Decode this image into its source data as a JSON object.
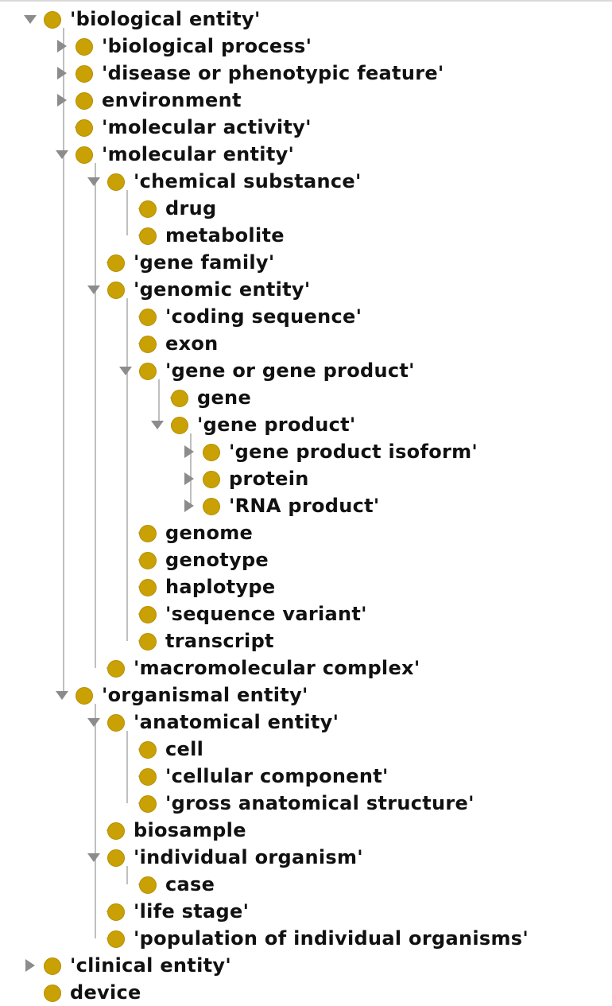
{
  "colors": {
    "class_icon": "#c9a104",
    "tree_line": "#bfbfbf",
    "toggle_arrow": "#8c8c8c",
    "text": "#111111"
  },
  "icons": {
    "class": "class-circle-icon",
    "expanded": "triangle-down-icon",
    "collapsed": "triangle-right-icon"
  },
  "tree": {
    "rows": [
      {
        "label": "'biological entity'",
        "depth": 0,
        "toggle": "expanded"
      },
      {
        "label": "'biological process'",
        "depth": 1,
        "toggle": "collapsed"
      },
      {
        "label": "'disease or phenotypic feature'",
        "depth": 1,
        "toggle": "collapsed"
      },
      {
        "label": "environment",
        "depth": 1,
        "toggle": "collapsed"
      },
      {
        "label": "'molecular activity'",
        "depth": 1,
        "toggle": "none"
      },
      {
        "label": "'molecular entity'",
        "depth": 1,
        "toggle": "expanded"
      },
      {
        "label": "'chemical substance'",
        "depth": 2,
        "toggle": "expanded"
      },
      {
        "label": "drug",
        "depth": 3,
        "toggle": "none"
      },
      {
        "label": "metabolite",
        "depth": 3,
        "toggle": "none"
      },
      {
        "label": "'gene family'",
        "depth": 2,
        "toggle": "none"
      },
      {
        "label": "'genomic entity'",
        "depth": 2,
        "toggle": "expanded"
      },
      {
        "label": "'coding sequence'",
        "depth": 3,
        "toggle": "none"
      },
      {
        "label": "exon",
        "depth": 3,
        "toggle": "none"
      },
      {
        "label": "'gene or gene product'",
        "depth": 3,
        "toggle": "expanded"
      },
      {
        "label": "gene",
        "depth": 4,
        "toggle": "none"
      },
      {
        "label": "'gene product'",
        "depth": 4,
        "toggle": "expanded"
      },
      {
        "label": "'gene product isoform'",
        "depth": 5,
        "toggle": "collapsed"
      },
      {
        "label": "protein",
        "depth": 5,
        "toggle": "collapsed"
      },
      {
        "label": "'RNA product'",
        "depth": 5,
        "toggle": "collapsed"
      },
      {
        "label": "genome",
        "depth": 3,
        "toggle": "none"
      },
      {
        "label": "genotype",
        "depth": 3,
        "toggle": "none"
      },
      {
        "label": "haplotype",
        "depth": 3,
        "toggle": "none"
      },
      {
        "label": "'sequence variant'",
        "depth": 3,
        "toggle": "none"
      },
      {
        "label": "transcript",
        "depth": 3,
        "toggle": "none"
      },
      {
        "label": "'macromolecular complex'",
        "depth": 2,
        "toggle": "none"
      },
      {
        "label": "'organismal entity'",
        "depth": 1,
        "toggle": "expanded"
      },
      {
        "label": "'anatomical entity'",
        "depth": 2,
        "toggle": "expanded"
      },
      {
        "label": "cell",
        "depth": 3,
        "toggle": "none"
      },
      {
        "label": "'cellular component'",
        "depth": 3,
        "toggle": "none"
      },
      {
        "label": "'gross anatomical structure'",
        "depth": 3,
        "toggle": "none"
      },
      {
        "label": "biosample",
        "depth": 2,
        "toggle": "none"
      },
      {
        "label": "'individual organism'",
        "depth": 2,
        "toggle": "expanded"
      },
      {
        "label": "case",
        "depth": 3,
        "toggle": "none"
      },
      {
        "label": "'life stage'",
        "depth": 2,
        "toggle": "none"
      },
      {
        "label": "'population of individual organisms'",
        "depth": 2,
        "toggle": "none"
      },
      {
        "label": "'clinical entity'",
        "depth": 0,
        "toggle": "collapsed"
      },
      {
        "label": "device",
        "depth": 0,
        "toggle": "none"
      }
    ]
  }
}
